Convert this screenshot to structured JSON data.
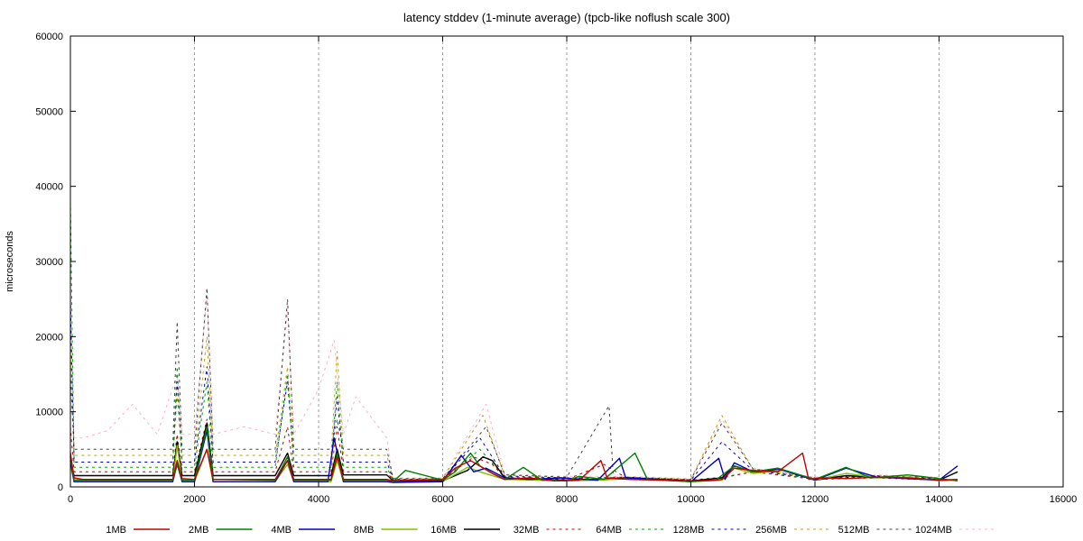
{
  "chart_data": {
    "type": "line",
    "title": "latency stddev (1-minute average) (tpcb-like noflush scale 300)",
    "xlabel": "",
    "ylabel": "microseconds",
    "xlim": [
      0,
      16000
    ],
    "ylim": [
      0,
      60000
    ],
    "x_ticks": [
      "0",
      "2000",
      "4000",
      "6000",
      "8000",
      "10000",
      "12000",
      "14000",
      "16000"
    ],
    "y_ticks": [
      "0",
      "10000",
      "20000",
      "30000",
      "40000",
      "50000",
      "60000"
    ],
    "x_grid": [
      2000,
      4000,
      6000,
      8000,
      10000,
      12000,
      14000
    ],
    "legend_position": "bottom",
    "series": [
      {
        "name": "1MB",
        "color": "#c00000",
        "dash": "solid",
        "x": [
          0,
          60,
          200,
          1650,
          1720,
          1800,
          2000,
          2200,
          2300,
          3300,
          3500,
          3600,
          4200,
          4300,
          4400,
          5100,
          5200,
          5600,
          6000,
          6200,
          6450,
          6800,
          7000,
          7400,
          7800,
          8200,
          8550,
          8650,
          9000,
          9500,
          10000,
          10400,
          10500,
          10700,
          11000,
          11400,
          11800,
          11900,
          12100,
          12500,
          13000,
          13500,
          14000,
          14300
        ],
        "y": [
          4500,
          1200,
          1000,
          1000,
          3500,
          1100,
          1000,
          5000,
          1000,
          1000,
          3500,
          1000,
          1000,
          4000,
          1000,
          1000,
          800,
          900,
          1000,
          2500,
          3500,
          1800,
          1000,
          1200,
          800,
          900,
          3500,
          1200,
          1000,
          900,
          800,
          900,
          1000,
          2500,
          2200,
          2000,
          4500,
          1000,
          1200,
          1100,
          1300,
          1200,
          900,
          1000
        ]
      },
      {
        "name": "2MB",
        "color": "#008000",
        "dash": "solid",
        "x": [
          0,
          60,
          200,
          1650,
          1720,
          1800,
          2000,
          2200,
          2300,
          3300,
          3500,
          3600,
          4200,
          4300,
          4400,
          5100,
          5200,
          5400,
          6000,
          6200,
          6450,
          6600,
          6800,
          7000,
          7300,
          7600,
          8000,
          8200,
          8600,
          9100,
          9300,
          10000,
          10400,
          10700,
          11000,
          11400,
          12000,
          12500,
          12900,
          13500,
          14300
        ],
        "y": [
          4000,
          900,
          900,
          900,
          3000,
          900,
          900,
          8000,
          1000,
          900,
          4000,
          900,
          900,
          4500,
          900,
          900,
          700,
          2200,
          900,
          2000,
          4500,
          2800,
          1800,
          1000,
          2600,
          900,
          800,
          1400,
          1000,
          4500,
          1000,
          700,
          900,
          2800,
          2000,
          2500,
          1000,
          2600,
          1200,
          1600,
          800
        ]
      },
      {
        "name": "4MB",
        "color": "#0000c0",
        "dash": "solid",
        "x": [
          0,
          60,
          200,
          1650,
          1720,
          1800,
          2000,
          2200,
          2300,
          3300,
          3500,
          3600,
          4150,
          4250,
          4400,
          5100,
          5200,
          6000,
          6300,
          6500,
          6700,
          7000,
          7400,
          7900,
          8500,
          8850,
          8950,
          9500,
          10000,
          10450,
          10550,
          10700,
          11000,
          11400,
          12000,
          12500,
          13000,
          14000,
          14300
        ],
        "y": [
          3500,
          700,
          700,
          700,
          3000,
          700,
          700,
          7500,
          700,
          700,
          3500,
          700,
          700,
          6500,
          700,
          700,
          600,
          700,
          4200,
          2000,
          2500,
          1200,
          1000,
          1200,
          900,
          3800,
          1200,
          1000,
          700,
          3800,
          1000,
          3200,
          2000,
          2400,
          900,
          2500,
          1300,
          900,
          2800
        ]
      },
      {
        "name": "8MB",
        "color": "#80c000",
        "dash": "solid",
        "x": [
          0,
          60,
          200,
          1650,
          1720,
          1800,
          2000,
          2200,
          2300,
          3300,
          3500,
          3600,
          4200,
          4300,
          4400,
          5100,
          5200,
          6000,
          6400,
          6600,
          7000,
          7500,
          8000,
          8500,
          9000,
          9500,
          10000,
          10500,
          10700,
          11000,
          11500,
          12000,
          12500,
          13000,
          13500,
          14000,
          14300
        ],
        "y": [
          3000,
          700,
          700,
          700,
          5500,
          700,
          700,
          5000,
          700,
          700,
          3000,
          700,
          700,
          3500,
          700,
          700,
          600,
          700,
          2600,
          2000,
          1000,
          900,
          800,
          900,
          1100,
          900,
          700,
          900,
          2500,
          1800,
          2200,
          900,
          1800,
          1200,
          1300,
          800,
          900
        ]
      },
      {
        "name": "16MB",
        "color": "#000000",
        "dash": "solid",
        "x": [
          0,
          60,
          200,
          1650,
          1720,
          1800,
          2000,
          2200,
          2300,
          3300,
          3500,
          3600,
          4200,
          4300,
          4400,
          5100,
          5200,
          6000,
          6400,
          6650,
          6800,
          7000,
          7500,
          8000,
          8500,
          9000,
          9500,
          10000,
          10500,
          10700,
          11000,
          11500,
          12000,
          12500,
          13000,
          13500,
          14000,
          14300
        ],
        "y": [
          3500,
          1500,
          1500,
          1500,
          6000,
          1500,
          1500,
          8500,
          1500,
          1500,
          4500,
          1500,
          1500,
          5000,
          1600,
          1600,
          800,
          800,
          2200,
          4000,
          3500,
          1200,
          1000,
          900,
          1000,
          1200,
          1000,
          800,
          1200,
          2800,
          2000,
          2200,
          900,
          1500,
          1300,
          1200,
          900,
          2000
        ]
      },
      {
        "name": "32MB",
        "color": "#c00000",
        "dash": "3,4",
        "x": [
          0,
          60,
          200,
          1650,
          1720,
          1800,
          2000,
          2200,
          2300,
          3300,
          3500,
          3600,
          4200,
          4300,
          4400,
          5100,
          5200,
          6000,
          6500,
          6800,
          7000,
          8000,
          8600,
          9000,
          10000,
          10500,
          11000,
          12000,
          13000,
          14000
        ],
        "y": [
          8000,
          2000,
          2000,
          2000,
          7000,
          2000,
          2000,
          9000,
          2000,
          2000,
          8000,
          2000,
          2000,
          8000,
          2000,
          2000,
          900,
          1000,
          4000,
          3000,
          1200,
          1000,
          3000,
          1000,
          900,
          1200,
          2000,
          1000,
          1200,
          900
        ]
      },
      {
        "name": "64MB",
        "color": "#00a000",
        "dash": "3,4",
        "x": [
          0,
          60,
          200,
          1650,
          1720,
          1800,
          2000,
          2200,
          2300,
          3300,
          3500,
          3600,
          4200,
          4300,
          4400,
          5100,
          5200,
          6000,
          6600,
          7000,
          8000,
          9000,
          10000,
          10500,
          11000,
          12000,
          13000,
          14000
        ],
        "y": [
          38000,
          2600,
          2600,
          2600,
          16000,
          2600,
          2600,
          14000,
          2600,
          2600,
          15000,
          2600,
          2600,
          14000,
          2600,
          2600,
          900,
          1000,
          5000,
          1300,
          1100,
          1200,
          900,
          1300,
          2000,
          1100,
          1300,
          1000
        ]
      },
      {
        "name": "128MB",
        "color": "#0000c0",
        "dash": "3,4",
        "x": [
          0,
          60,
          200,
          1650,
          1720,
          1800,
          2000,
          2200,
          2300,
          3300,
          3500,
          3600,
          4200,
          4300,
          4400,
          5100,
          5200,
          6000,
          6600,
          7000,
          8000,
          9000,
          10000,
          10500,
          11000,
          12000,
          13000,
          14000
        ],
        "y": [
          25000,
          3300,
          3300,
          3300,
          14000,
          3300,
          3300,
          16000,
          3300,
          3300,
          14000,
          3300,
          3300,
          12000,
          3300,
          3300,
          1000,
          1000,
          6500,
          1400,
          1200,
          1200,
          900,
          6000,
          2200,
          1100,
          1400,
          1100
        ]
      },
      {
        "name": "256MB",
        "color": "#c0a000",
        "dash": "3,4",
        "x": [
          0,
          60,
          200,
          1650,
          1720,
          1800,
          2000,
          2200,
          2300,
          3300,
          3500,
          3600,
          4200,
          4300,
          4400,
          5100,
          5200,
          6000,
          6650,
          7000,
          8000,
          9000,
          10000,
          10500,
          11000,
          12000,
          13000,
          14000
        ],
        "y": [
          20000,
          4200,
          4200,
          4200,
          12000,
          4200,
          4200,
          20000,
          4200,
          4200,
          16000,
          4200,
          4200,
          18000,
          4200,
          4200,
          1000,
          1100,
          9500,
          1500,
          1200,
          1300,
          1000,
          9500,
          2300,
          1200,
          1500,
          1100
        ]
      },
      {
        "name": "512MB",
        "color": "#404040",
        "dash": "3,4",
        "x": [
          0,
          60,
          200,
          1650,
          1720,
          1800,
          2000,
          2200,
          2300,
          3300,
          3500,
          3600,
          4200,
          4300,
          4400,
          5100,
          5200,
          6000,
          6700,
          7000,
          8000,
          8680,
          8750,
          9000,
          10000,
          10500,
          11000,
          12000,
          13000,
          14000
        ],
        "y": [
          15000,
          5000,
          5000,
          5000,
          22000,
          5000,
          5000,
          26500,
          5000,
          5000,
          25000,
          5000,
          5000,
          9000,
          5000,
          5000,
          1100,
          1100,
          8000,
          1600,
          1300,
          10800,
          1300,
          1300,
          1000,
          8500,
          2400,
          1200,
          1500,
          1200
        ]
      },
      {
        "name": "1024MB",
        "color": "#ffb0c0",
        "dash": "3,4",
        "x": [
          0,
          60,
          200,
          600,
          1000,
          1400,
          1720,
          1800,
          2000,
          2200,
          2300,
          2800,
          3300,
          3500,
          3600,
          4000,
          4250,
          4400,
          4600,
          5100,
          5200,
          6000,
          6700,
          7000,
          8000,
          9000,
          10000,
          10500,
          11000,
          12000,
          13000,
          14000
        ],
        "y": [
          20000,
          6500,
          6500,
          7500,
          11000,
          7000,
          15000,
          7000,
          7000,
          25500,
          7000,
          8000,
          7000,
          23500,
          7000,
          13000,
          19500,
          7000,
          12000,
          6500,
          1200,
          1200,
          11000,
          1700,
          1400,
          1400,
          1100,
          9000,
          2500,
          1300,
          1600,
          1300
        ]
      }
    ]
  }
}
